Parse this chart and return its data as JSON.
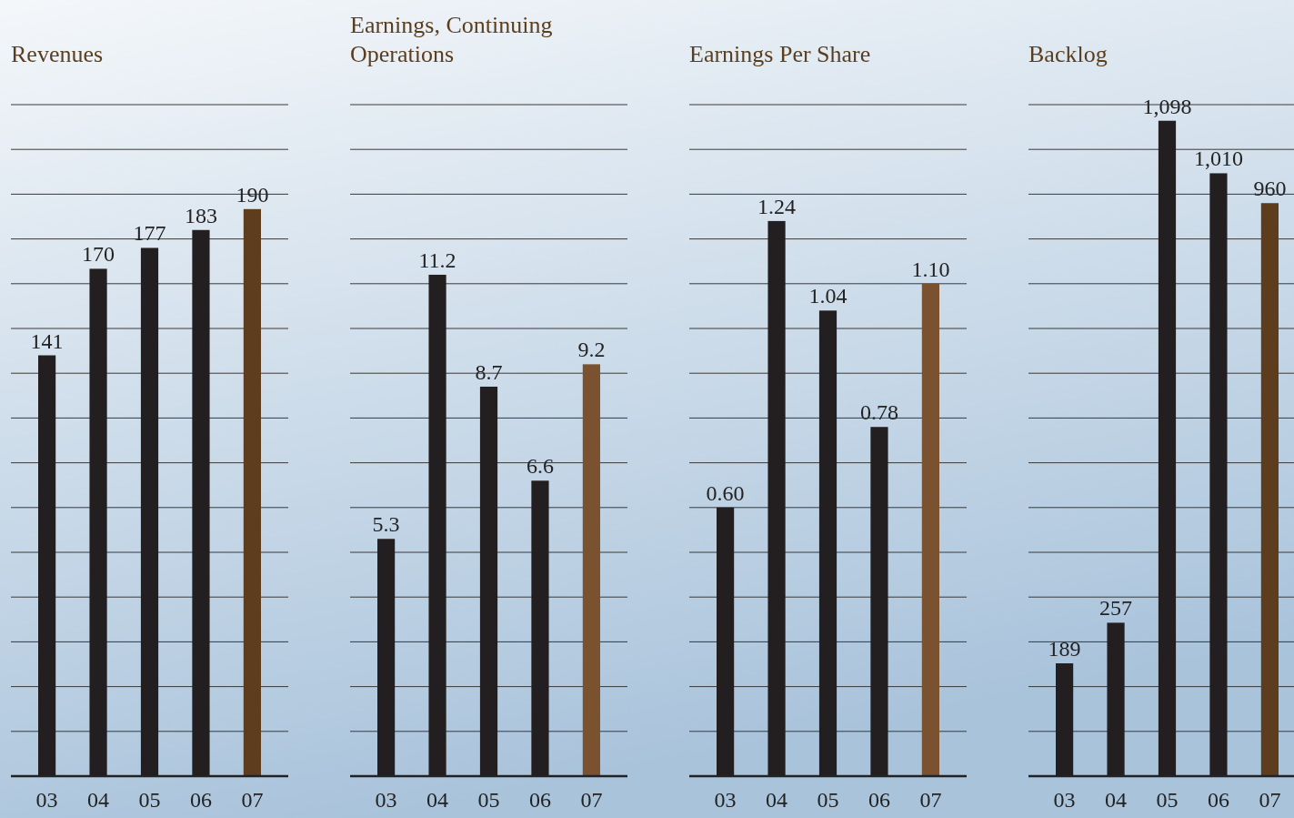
{
  "chart_data": [
    {
      "type": "bar",
      "title": "Revenues",
      "categories": [
        "03",
        "04",
        "05",
        "06",
        "07"
      ],
      "values": [
        141,
        170,
        177,
        183,
        190
      ],
      "colors": [
        "#231f20",
        "#231f20",
        "#231f20",
        "#231f20",
        "#5e3d1e"
      ],
      "value_labels": [
        "141",
        "170",
        "177",
        "183",
        "190"
      ],
      "ylim": [
        0,
        225
      ],
      "yticks": [
        {
          "value": 15,
          "label": null
        },
        {
          "value": 30,
          "label": null
        },
        {
          "value": 45,
          "label": null
        },
        {
          "value": 60,
          "label": null
        },
        {
          "value": 75,
          "label": null
        },
        {
          "value": 90,
          "label": null
        },
        {
          "value": 105,
          "label": null
        },
        {
          "value": 120,
          "label": null
        },
        {
          "value": 135,
          "label": null
        },
        {
          "value": 150,
          "label": null
        },
        {
          "value": 165,
          "label": null
        },
        {
          "value": 180,
          "label": null
        },
        {
          "value": 195,
          "label": null
        },
        {
          "value": 210,
          "label": null
        },
        {
          "value": 225,
          "label": null
        }
      ],
      "grid": "y",
      "tick_labels": "x"
    },
    {
      "type": "bar",
      "title": "Earnings, Continuing Operations",
      "categories": [
        "03",
        "04",
        "05",
        "06",
        "07"
      ],
      "values": [
        5.3,
        11.2,
        8.7,
        6.6,
        9.2
      ],
      "colors": [
        "#231f20",
        "#231f20",
        "#231f20",
        "#231f20",
        "#7a5230"
      ],
      "value_labels": [
        "5.3",
        "11.2",
        "8.7",
        "6.6",
        "9.2"
      ],
      "ylim": [
        0,
        15
      ],
      "yticks": [
        {
          "value": 1,
          "label": null
        },
        {
          "value": 2,
          "label": null
        },
        {
          "value": 3,
          "label": null
        },
        {
          "value": 4,
          "label": null
        },
        {
          "value": 5,
          "label": null
        },
        {
          "value": 6,
          "label": null
        },
        {
          "value": 7,
          "label": null
        },
        {
          "value": 8,
          "label": null
        },
        {
          "value": 9,
          "label": null
        },
        {
          "value": 10,
          "label": null
        },
        {
          "value": 11,
          "label": null
        },
        {
          "value": 12,
          "label": null
        },
        {
          "value": 13,
          "label": null
        },
        {
          "value": 14,
          "label": null
        },
        {
          "value": 15,
          "label": null
        }
      ],
      "grid": "y",
      "tick_labels": "x"
    },
    {
      "type": "bar",
      "title": "Earnings Per Share",
      "categories": [
        "03",
        "04",
        "05",
        "06",
        "07"
      ],
      "values": [
        0.6,
        1.24,
        1.04,
        0.78,
        1.1
      ],
      "colors": [
        "#231f20",
        "#231f20",
        "#231f20",
        "#231f20",
        "#7a5230"
      ],
      "value_labels": [
        "0.60",
        "1.24",
        "1.04",
        "0.78",
        "1.10"
      ],
      "ylim": [
        0,
        1.5
      ],
      "yticks": [
        {
          "value": 0.1,
          "label": null
        },
        {
          "value": 0.2,
          "label": null
        },
        {
          "value": 0.3,
          "label": null
        },
        {
          "value": 0.4,
          "label": null
        },
        {
          "value": 0.5,
          "label": null
        },
        {
          "value": 0.6,
          "label": null
        },
        {
          "value": 0.7,
          "label": null
        },
        {
          "value": 0.8,
          "label": null
        },
        {
          "value": 0.9,
          "label": null
        },
        {
          "value": 1.0,
          "label": null
        },
        {
          "value": 1.1,
          "label": null
        },
        {
          "value": 1.2,
          "label": null
        },
        {
          "value": 1.3,
          "label": null
        },
        {
          "value": 1.4,
          "label": null
        },
        {
          "value": 1.5,
          "label": null
        }
      ],
      "grid": "y",
      "tick_labels": "x"
    },
    {
      "type": "bar",
      "title": "Backlog",
      "categories": [
        "03",
        "04",
        "05",
        "06",
        "07"
      ],
      "values": [
        189,
        257,
        1098,
        1010,
        960
      ],
      "colors": [
        "#231f20",
        "#231f20",
        "#231f20",
        "#231f20",
        "#5e3d1e"
      ],
      "value_labels": [
        "189",
        "257",
        "1,098",
        "1,010",
        "960"
      ],
      "ylim": [
        0,
        1125
      ],
      "yticks": [
        {
          "value": 75,
          "label": null
        },
        {
          "value": 150,
          "label": null
        },
        {
          "value": 225,
          "label": null
        },
        {
          "value": 300,
          "label": null
        },
        {
          "value": 375,
          "label": null
        },
        {
          "value": 450,
          "label": null
        },
        {
          "value": 525,
          "label": null
        },
        {
          "value": 600,
          "label": null
        },
        {
          "value": 675,
          "label": null
        },
        {
          "value": 750,
          "label": null
        },
        {
          "value": 825,
          "label": null
        },
        {
          "value": 900,
          "label": null
        },
        {
          "value": 975,
          "label": null
        },
        {
          "value": 1050,
          "label": null
        },
        {
          "value": 1125,
          "label": null
        }
      ],
      "grid": "y",
      "tick_labels": "x"
    }
  ]
}
